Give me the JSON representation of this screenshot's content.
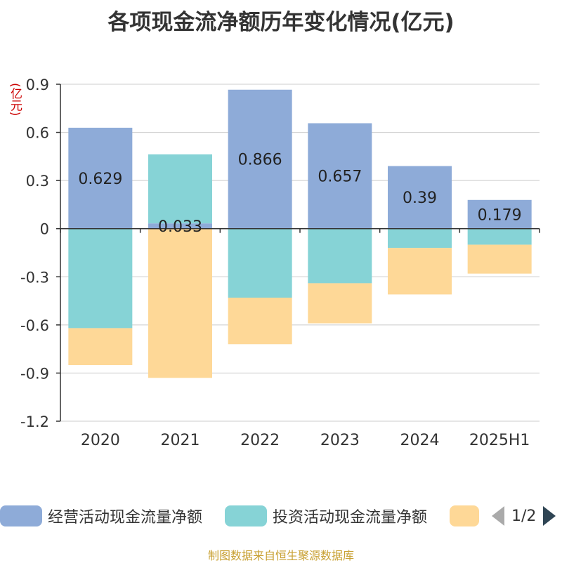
{
  "chart_data": {
    "type": "bar",
    "stacked": true,
    "title": "各项现金流净额历年变化情况(亿元)",
    "unit_label": "(亿元)",
    "categories": [
      "2020",
      "2021",
      "2022",
      "2023",
      "2024",
      "2025H1"
    ],
    "ylim": [
      -1.2,
      0.9
    ],
    "yticks": [
      "0.9",
      "0.6",
      "0.3",
      "0",
      "-0.3",
      "-0.6",
      "-0.9",
      "-1.2"
    ],
    "ytick_values": [
      0.9,
      0.6,
      0.3,
      0,
      -0.3,
      -0.6,
      -0.9,
      -1.2
    ],
    "grid": true,
    "legend_position": "bottom",
    "series": [
      {
        "name": "经营活动现金流量净额",
        "color": "#8eabd8",
        "values": [
          0.629,
          0.033,
          0.866,
          0.657,
          0.39,
          0.179
        ],
        "labels": [
          "0.629",
          "0.033",
          "0.866",
          "0.657",
          "0.39",
          "0.179"
        ]
      },
      {
        "name": "投资活动现金流量净额",
        "color": "#86d3d6",
        "values": [
          -0.62,
          0.43,
          -0.43,
          -0.34,
          -0.12,
          -0.1
        ]
      },
      {
        "name": "",
        "color": "#fed897",
        "values": [
          -0.23,
          -0.93,
          -0.29,
          -0.25,
          -0.29,
          -0.18
        ]
      }
    ]
  },
  "legend": {
    "item1": "经营活动现金流量净额",
    "item2": "投资活动现金流量净额",
    "page": "1/2"
  },
  "footer": "制图数据来自恒生聚源数据库"
}
